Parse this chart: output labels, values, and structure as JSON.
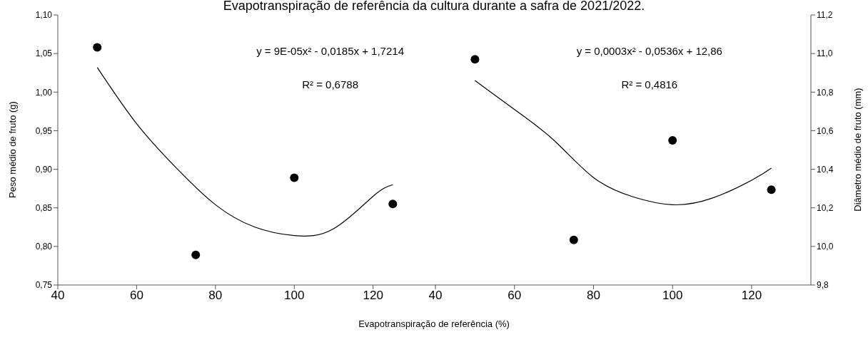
{
  "chart_data": [
    {
      "type": "scatter",
      "title": "Evapotranspiração de referência da cultura durante a safra de 2021/2022.",
      "xlabel": "Evapotranspiração de referência (%)",
      "ylabel": "Peso médio de fruto (g)",
      "xlim": [
        40,
        136
      ],
      "xticks": [
        40,
        60,
        80,
        100,
        120
      ],
      "ylim": [
        0.75,
        1.1
      ],
      "yticks": [
        {
          "value": 0.75,
          "label": "0,75"
        },
        {
          "value": 0.8,
          "label": "0,80"
        },
        {
          "value": 0.85,
          "label": "0,85"
        },
        {
          "value": 0.9,
          "label": "0,90"
        },
        {
          "value": 0.95,
          "label": "0,95"
        },
        {
          "value": 1.0,
          "label": "1,00"
        },
        {
          "value": 1.05,
          "label": "1,05"
        },
        {
          "value": 1.1,
          "label": "1,10"
        }
      ],
      "annotations": [
        "y = 9E-05x² - 0,0185x + 1,7214",
        "R² = 0,6788"
      ],
      "series": [
        {
          "type": "scatter",
          "color": "#000000",
          "marker": "circle",
          "x": [
            50,
            75,
            100,
            125
          ],
          "values": [
            1.058,
            0.789,
            0.889,
            0.855
          ]
        },
        {
          "type": "line",
          "color": "#000000",
          "x": [
            50,
            60,
            70,
            80,
            90,
            100,
            110,
            120,
            125
          ],
          "values": [
            1.032,
            0.959,
            0.902,
            0.854,
            0.825,
            0.814,
            0.823,
            0.865,
            0.88
          ]
        }
      ]
    },
    {
      "type": "scatter",
      "y2label": "Diâmetro médio de fruto (mm)",
      "xlim": [
        40,
        135
      ],
      "xticks": [
        40,
        60,
        80,
        100,
        120
      ],
      "y2lim": [
        9.8,
        11.2
      ],
      "y2ticks": [
        {
          "value": 9.8,
          "label": "9,8"
        },
        {
          "value": 10.0,
          "label": "10,0"
        },
        {
          "value": 10.2,
          "label": "10,2"
        },
        {
          "value": 10.4,
          "label": "10,4"
        },
        {
          "value": 10.6,
          "label": "10,6"
        },
        {
          "value": 10.8,
          "label": "10,8"
        },
        {
          "value": 11.0,
          "label": "11,0"
        },
        {
          "value": 11.2,
          "label": "11,2"
        }
      ],
      "annotations": [
        "y = 0,0003x² - 0,0536x + 12,86",
        "R² = 0,4816"
      ],
      "series": [
        {
          "type": "scatter",
          "axis": "y2",
          "color": "#000000",
          "marker": "circle",
          "x": [
            50,
            75,
            100,
            125
          ],
          "values": [
            10.97,
            10.034,
            10.55,
            10.294
          ]
        },
        {
          "type": "line",
          "axis": "y2",
          "color": "#000000",
          "x": [
            50,
            60,
            70,
            80,
            90,
            100,
            110,
            120,
            125
          ],
          "values": [
            10.86,
            10.71,
            10.55,
            10.357,
            10.257,
            10.216,
            10.25,
            10.343,
            10.406
          ]
        }
      ]
    }
  ]
}
